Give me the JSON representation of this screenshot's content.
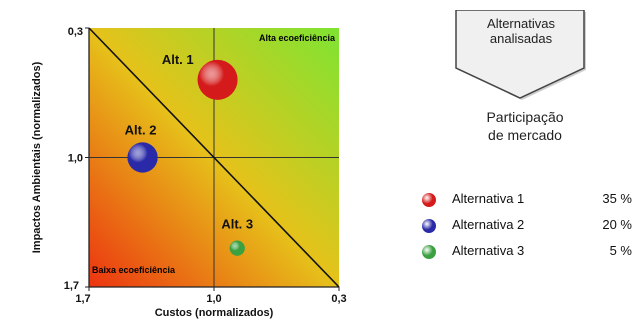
{
  "chart_data": {
    "type": "scatter",
    "title": "",
    "xlabel": "Custos (normalizados)",
    "ylabel": "Impactos Ambientais (normalizados)",
    "xlim": [
      1.7,
      0.3
    ],
    "ylim": [
      1.7,
      0.3
    ],
    "x_ticks": [
      "1,7",
      "1,0",
      "0,3"
    ],
    "y_ticks": [
      "0,3",
      "1,0",
      "1,7"
    ],
    "zone_labels": {
      "top_right": "Alta ecoeficiência",
      "bottom_left": "Baixa ecoeficiência"
    },
    "grid": false,
    "points": [
      {
        "label": "Alt. 1",
        "x": 0.98,
        "y": 0.58,
        "share": 35,
        "color": "#d41a1a"
      },
      {
        "label": "Alt. 2",
        "x": 1.4,
        "y": 1.0,
        "share": 20,
        "color": "#2a2aa8"
      },
      {
        "label": "Alt. 3",
        "x": 0.87,
        "y": 1.49,
        "share": 5,
        "color": "#3aa040"
      }
    ]
  },
  "callout": {
    "line1": "Alternativas",
    "line2": "analisadas"
  },
  "share_title": {
    "line1": "Participação",
    "line2": "de mercado"
  },
  "legend": [
    {
      "label": "Alternativa 1",
      "value": "35 %",
      "color": "#d41a1a"
    },
    {
      "label": "Alternativa 2",
      "value": "20 %",
      "color": "#2a2aa8"
    },
    {
      "label": "Alternativa 3",
      "value": "5 %",
      "color": "#3aa040"
    }
  ]
}
